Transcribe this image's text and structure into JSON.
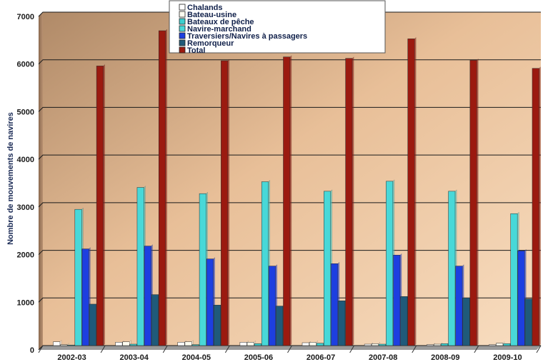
{
  "chart_data": {
    "type": "bar",
    "ylabel": "Nombre de mouvements de navires",
    "xlabel": "",
    "ylim": [
      0,
      7000
    ],
    "yticks": [
      0,
      1000,
      2000,
      3000,
      4000,
      5000,
      6000,
      7000
    ],
    "grid": true,
    "legend_position": "top",
    "categories": [
      "2002-03",
      "2003-04",
      "2004-05",
      "2005-06",
      "2006-07",
      "2007-08",
      "2008-09",
      "2009-10"
    ],
    "series": [
      {
        "name": "Chalands",
        "color": "#ffffff",
        "values": [
          80,
          70,
          70,
          70,
          60,
          30,
          20,
          20
        ]
      },
      {
        "name": "Bateau-usine",
        "color": "#fdfcf0",
        "values": [
          20,
          80,
          80,
          70,
          70,
          40,
          30,
          50
        ]
      },
      {
        "name": "Bateaux de pêche",
        "color": "#3ccfcf",
        "values": [
          10,
          30,
          20,
          40,
          50,
          30,
          40,
          40
        ]
      },
      {
        "name": "Navire-marchand",
        "color": "#48d8d8",
        "values": [
          2860,
          3320,
          3190,
          3440,
          3240,
          3450,
          3240,
          2770
        ]
      },
      {
        "name": "Traversiers/Navires à passagers",
        "color": "#1d3fe0",
        "values": [
          2030,
          2090,
          1820,
          1670,
          1720,
          1900,
          1670,
          1990
        ]
      },
      {
        "name": "Remorqueur",
        "color": "#1f5a7a",
        "values": [
          870,
          1070,
          850,
          830,
          940,
          1030,
          1000,
          980
        ]
      },
      {
        "name": "Total",
        "color": "#9b1a10",
        "values": [
          5870,
          6610,
          5980,
          6060,
          6030,
          6440,
          5990,
          5820
        ]
      }
    ]
  }
}
